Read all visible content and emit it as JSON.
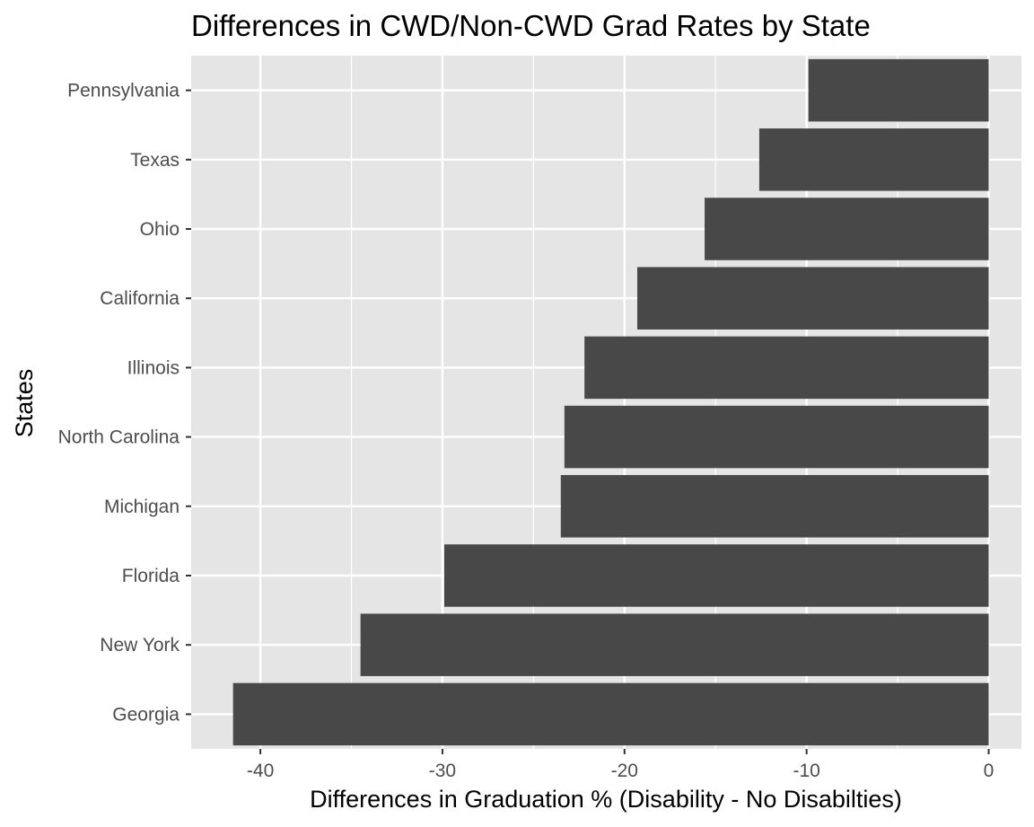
{
  "chart_data": {
    "type": "bar",
    "orientation": "horizontal",
    "title": "Differences in CWD/Non-CWD Grad Rates by State",
    "xlabel": "Differences in Graduation % (Disability - No Disabilties)",
    "ylabel": "States",
    "categories": [
      "Pennsylvania",
      "Texas",
      "Ohio",
      "California",
      "Illinois",
      "North Carolina",
      "Michigan",
      "Florida",
      "New York",
      "Georgia"
    ],
    "values": [
      -9.9,
      -12.6,
      -15.6,
      -19.3,
      -22.2,
      -23.3,
      -23.5,
      -29.9,
      -34.5,
      -41.5
    ],
    "xlim": [
      -43.8,
      1.8
    ],
    "xticks": [
      -40,
      -30,
      -20,
      -10,
      0
    ],
    "xtick_labels": [
      "-40",
      "-30",
      "-20",
      "-10",
      "0"
    ],
    "grid": true,
    "legend": "none",
    "colors": {
      "bar": "#484848",
      "panel_background": "#e5e5e5",
      "gridline": "#ffffff",
      "tick_text": "#4d4d4d",
      "tick_mark": "#333333"
    }
  }
}
